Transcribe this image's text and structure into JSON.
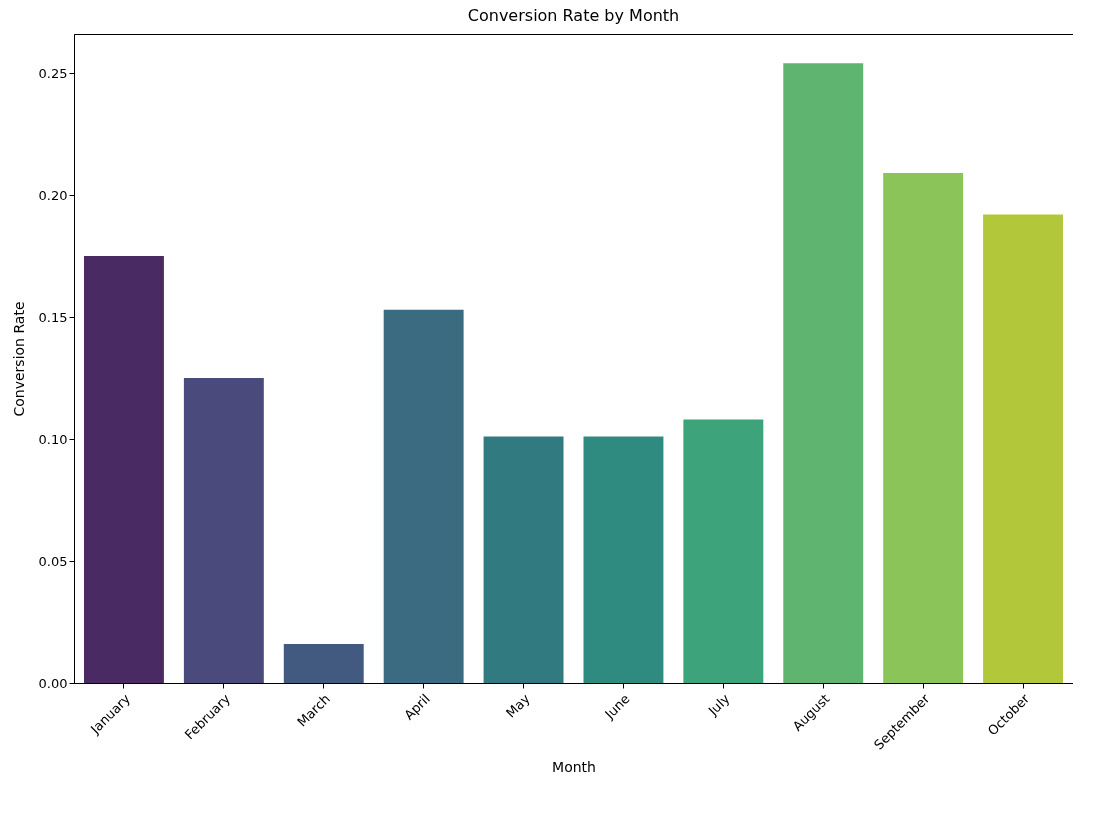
{
  "chart_data": {
    "type": "bar",
    "title": "Conversion Rate by Month",
    "xlabel": "Month",
    "ylabel": "Conversion Rate",
    "categories": [
      "January",
      "February",
      "March",
      "April",
      "May",
      "June",
      "July",
      "August",
      "September",
      "October"
    ],
    "values": [
      0.175,
      0.125,
      0.016,
      0.153,
      0.101,
      0.101,
      0.108,
      0.254,
      0.209,
      0.192
    ],
    "colors": [
      "#4a2a63",
      "#4a4a7c",
      "#435a80",
      "#3a6b80",
      "#317b80",
      "#2f8b7f",
      "#3da37a",
      "#5fb56f",
      "#8bc55a",
      "#b2c83a"
    ],
    "ylim": [
      0,
      0.266
    ],
    "yticks": [
      {
        "value": 0,
        "label": "0.00"
      },
      {
        "value": 0.05,
        "label": "0.05"
      },
      {
        "value": 0.1,
        "label": "0.10"
      },
      {
        "value": 0.15,
        "label": "0.15"
      },
      {
        "value": 0.2,
        "label": "0.20"
      },
      {
        "value": 0.25,
        "label": "0.25"
      }
    ],
    "grid": false
  }
}
